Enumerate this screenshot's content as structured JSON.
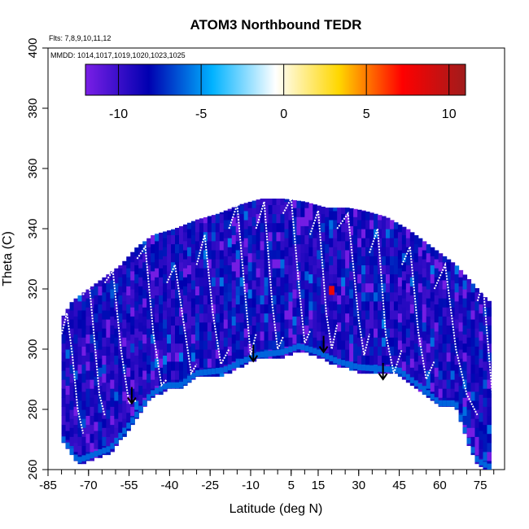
{
  "chart_data": {
    "type": "heatmap",
    "title": "ATOM3 Northbound TEDR",
    "xlabel": "Latitude (deg N)",
    "ylabel": "Theta (C)",
    "notes": [
      "Flts: 7,8,9,10,11,12",
      "MMDD: 1014,1017,1019,1020,1023,1025"
    ],
    "x_ticks": [
      -85,
      -70,
      -55,
      -40,
      -25,
      -10,
      5,
      15,
      30,
      45,
      60,
      75
    ],
    "x_minor_step": 5,
    "xlim": [
      -85,
      84
    ],
    "y_ticks": [
      260,
      280,
      300,
      320,
      340,
      360,
      380,
      400
    ],
    "ylim": [
      260,
      400
    ],
    "colorbar": {
      "ticks": [
        -10,
        -5,
        0,
        5,
        10
      ],
      "range": [
        -12,
        11
      ],
      "colors": [
        "#7a1fe6",
        "#0000b0",
        "#00b2ff",
        "#ffffff",
        "#ffd700",
        "#ff0000",
        "#a01c1c"
      ]
    },
    "grid": false,
    "surface_boundary": {
      "lat": [
        -80,
        -74,
        -62,
        -54,
        -47,
        -41,
        -36,
        -30,
        -20,
        -8,
        2,
        8,
        15,
        22,
        30,
        45,
        55,
        60,
        66,
        70,
        74,
        78
      ],
      "theta": [
        270,
        262,
        266,
        275,
        284,
        287,
        287,
        291,
        292,
        297,
        298,
        300,
        298,
        295,
        293,
        292,
        285,
        281,
        281,
        270,
        262,
        260
      ]
    },
    "top_boundary": {
      "lat": [
        -80,
        -76,
        -70,
        -64,
        -58,
        -52,
        -46,
        -38,
        -30,
        -22,
        -14,
        -6,
        2,
        10,
        18,
        26,
        32,
        40,
        48,
        54,
        60,
        66,
        72,
        78
      ],
      "theta": [
        310,
        316,
        320,
        324,
        328,
        334,
        338,
        340,
        343,
        345,
        348,
        350,
        350,
        349,
        347,
        347,
        346,
        344,
        340,
        336,
        332,
        328,
        322,
        316
      ]
    },
    "arrows": [
      {
        "lat": -54,
        "theta": 282
      },
      {
        "lat": -9,
        "theta": 296
      },
      {
        "lat": 17,
        "theta": 299
      },
      {
        "lat": 39,
        "theta": 290
      }
    ],
    "flight_profiles": [
      {
        "lat": [
          -80,
          -78,
          -76,
          -74,
          -72
        ],
        "theta": [
          305,
          312,
          298,
          280,
          272
        ]
      },
      {
        "lat": [
          -72,
          -70,
          -68,
          -66,
          -64
        ],
        "theta": [
          318,
          324,
          305,
          285,
          278
        ]
      },
      {
        "lat": [
          -64,
          -61,
          -58,
          -55,
          -52
        ],
        "theta": [
          322,
          326,
          300,
          282,
          283
        ]
      },
      {
        "lat": [
          -52,
          -49,
          -46,
          -43,
          -41
        ],
        "theta": [
          330,
          334,
          305,
          288,
          290
        ]
      },
      {
        "lat": [
          -41,
          -38,
          -35,
          -32,
          -30
        ],
        "theta": [
          322,
          328,
          310,
          292,
          295
        ]
      },
      {
        "lat": [
          -30,
          -27,
          -24,
          -21,
          -18
        ],
        "theta": [
          328,
          338,
          312,
          295,
          300
        ]
      },
      {
        "lat": [
          -18,
          -15,
          -12,
          -10,
          -8
        ],
        "theta": [
          340,
          348,
          318,
          298,
          305
        ]
      },
      {
        "lat": [
          -8,
          -5,
          -2,
          0,
          2
        ],
        "theta": [
          340,
          349,
          315,
          300,
          304
        ]
      },
      {
        "lat": [
          2,
          5,
          8,
          10,
          12
        ],
        "theta": [
          345,
          350,
          320,
          302,
          306
        ]
      },
      {
        "lat": [
          12,
          15,
          18,
          20,
          22
        ],
        "theta": [
          338,
          346,
          312,
          300,
          308
        ]
      },
      {
        "lat": [
          22,
          26,
          30,
          32,
          34
        ],
        "theta": [
          340,
          345,
          310,
          298,
          305
        ]
      },
      {
        "lat": [
          34,
          37,
          40,
          43,
          46
        ],
        "theta": [
          332,
          340,
          305,
          292,
          300
        ]
      },
      {
        "lat": [
          46,
          49,
          52,
          55,
          58
        ],
        "theta": [
          328,
          334,
          306,
          290,
          296
        ]
      },
      {
        "lat": [
          58,
          62,
          66,
          70,
          74
        ],
        "theta": [
          320,
          328,
          300,
          285,
          278
        ]
      },
      {
        "lat": [
          74,
          76,
          78,
          80,
          82
        ],
        "theta": [
          316,
          322,
          300,
          280,
          268
        ]
      }
    ]
  }
}
